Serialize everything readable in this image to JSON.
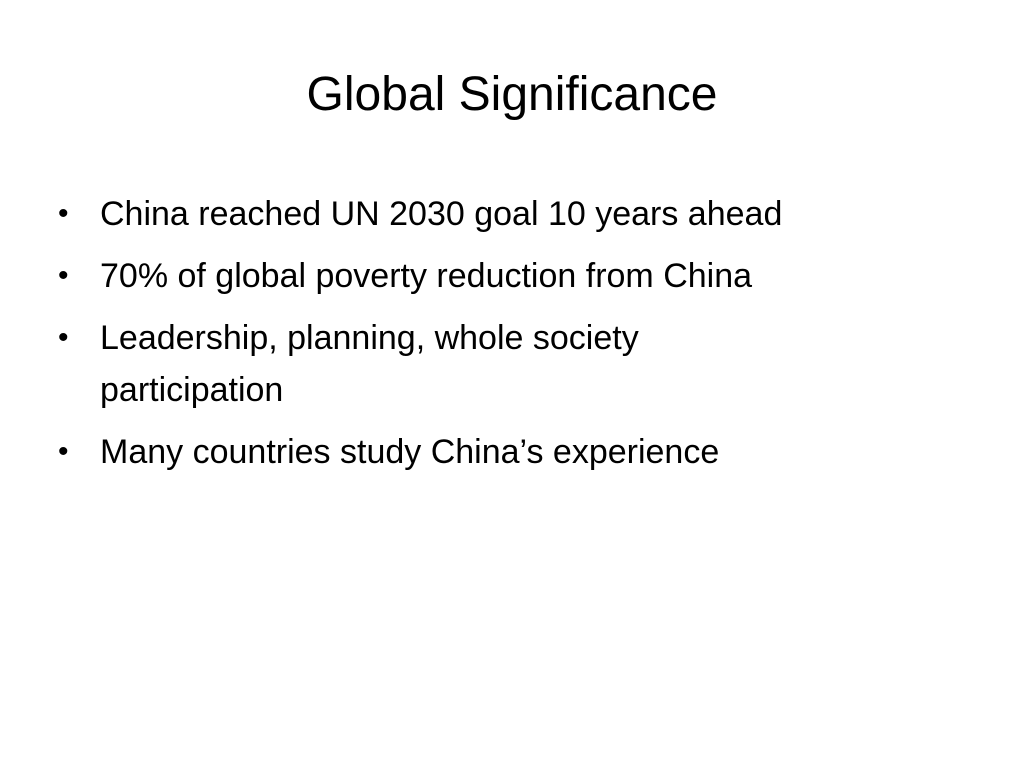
{
  "slide": {
    "title": "Global Significance",
    "bullet_glyph": "•",
    "bullets": [
      "China reached UN 2030 goal 10 years ahead",
      "70% of global poverty reduction from China",
      "Leadership, planning, whole society participation",
      "Many countries study China’s experience"
    ]
  }
}
